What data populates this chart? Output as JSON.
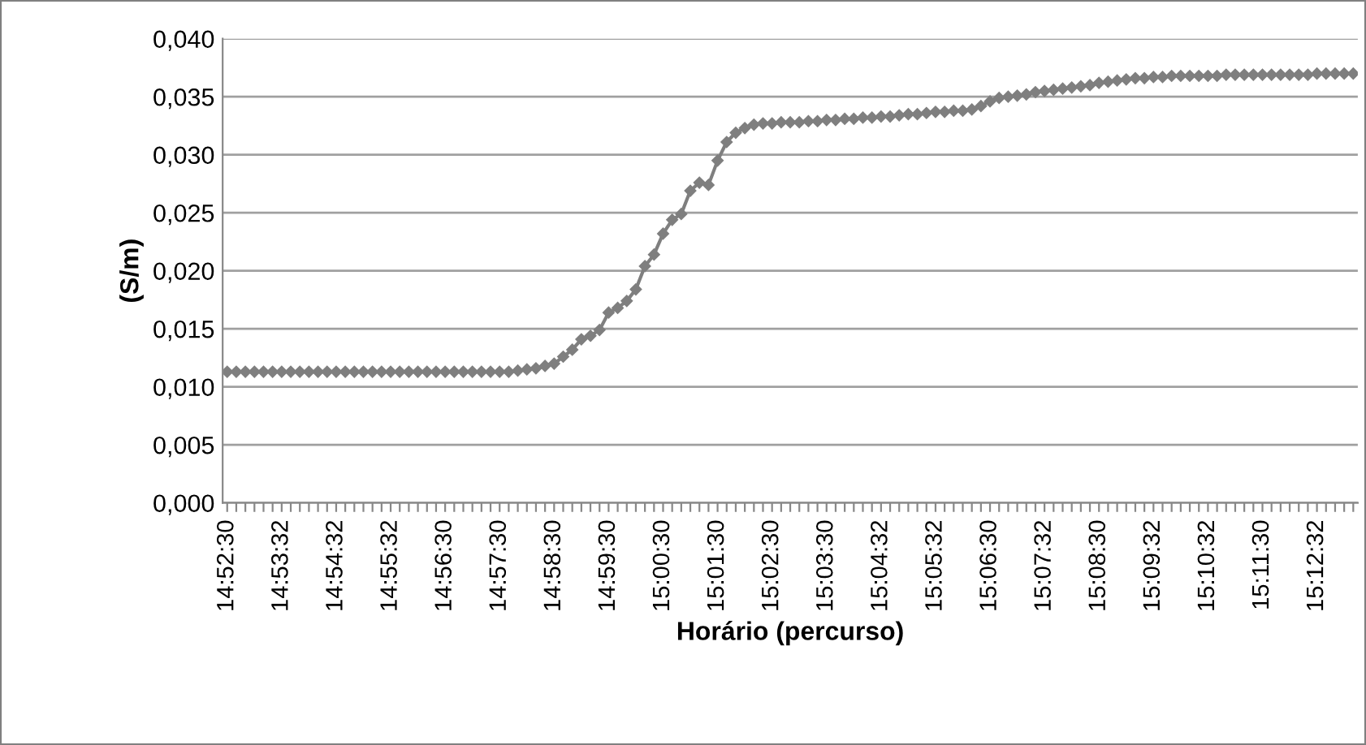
{
  "chart_data": {
    "type": "line",
    "xlabel": "Horário (percurso)",
    "ylabel": "(S/m)",
    "categories": [
      "14:52:30",
      null,
      null,
      null,
      null,
      null,
      "14:53:32",
      null,
      null,
      null,
      null,
      null,
      "14:54:32",
      null,
      null,
      null,
      null,
      null,
      "14:55:32",
      null,
      null,
      null,
      null,
      null,
      "14:56:30",
      null,
      null,
      null,
      null,
      null,
      "14:57:30",
      null,
      null,
      null,
      null,
      null,
      "14:58:30",
      null,
      null,
      null,
      null,
      null,
      "14:59:30",
      null,
      null,
      null,
      null,
      null,
      "15:00:30",
      null,
      null,
      null,
      null,
      null,
      "15:01:30",
      null,
      null,
      null,
      null,
      null,
      "15:02:30",
      null,
      null,
      null,
      null,
      null,
      "15:03:30",
      null,
      null,
      null,
      null,
      null,
      "15:04:32",
      null,
      null,
      null,
      null,
      null,
      "15:05:32",
      null,
      null,
      null,
      null,
      null,
      "15:06:30",
      null,
      null,
      null,
      null,
      null,
      "15:07:32",
      null,
      null,
      null,
      null,
      null,
      "15:08:30",
      null,
      null,
      null,
      null,
      null,
      "15:09:32",
      null,
      null,
      null,
      null,
      null,
      "15:10:32",
      null,
      null,
      null,
      null,
      null,
      "15:11:30",
      null,
      null,
      null,
      null,
      null,
      "15:12:32",
      null,
      null,
      null,
      null
    ],
    "series": [
      {
        "color": "#7f7f7f",
        "values": [
          0.0113,
          0.0113,
          0.0113,
          0.0113,
          0.0113,
          0.0113,
          0.0113,
          0.0113,
          0.0113,
          0.0113,
          0.0113,
          0.0113,
          0.0113,
          0.0113,
          0.0113,
          0.0113,
          0.0113,
          0.0113,
          0.0113,
          0.0113,
          0.0113,
          0.0113,
          0.0113,
          0.0113,
          0.0113,
          0.0113,
          0.0113,
          0.0113,
          0.0113,
          0.0113,
          0.0113,
          0.0113,
          0.0114,
          0.0115,
          0.0116,
          0.0118,
          0.012,
          0.0126,
          0.0132,
          0.0141,
          0.0144,
          0.0149,
          0.0164,
          0.0168,
          0.0174,
          0.0184,
          0.0204,
          0.0214,
          0.0232,
          0.0244,
          0.0249,
          0.0269,
          0.0276,
          0.0274,
          0.0295,
          0.0311,
          0.0319,
          0.0323,
          0.0326,
          0.0327,
          0.0327,
          0.0328,
          0.0328,
          0.0328,
          0.0329,
          0.0329,
          0.033,
          0.033,
          0.0331,
          0.0331,
          0.0332,
          0.0332,
          0.0333,
          0.0333,
          0.0334,
          0.0335,
          0.0335,
          0.0336,
          0.0337,
          0.0337,
          0.0338,
          0.0338,
          0.0339,
          0.0342,
          0.0346,
          0.0349,
          0.035,
          0.0351,
          0.0352,
          0.0354,
          0.0355,
          0.0356,
          0.0357,
          0.0358,
          0.0359,
          0.036,
          0.0362,
          0.0363,
          0.0364,
          0.0365,
          0.0366,
          0.0366,
          0.0367,
          0.0367,
          0.0368,
          0.0368,
          0.0368,
          0.0368,
          0.0368,
          0.0368,
          0.0369,
          0.0369,
          0.0369,
          0.0369,
          0.0369,
          0.0369,
          0.0369,
          0.0369,
          0.0369,
          0.0369,
          0.037,
          0.037,
          0.037,
          0.037,
          0.037
        ]
      }
    ],
    "ylim": [
      0,
      0.04
    ],
    "yticks": [
      {
        "value": 0,
        "label": "0,000"
      },
      {
        "value": 0.005,
        "label": "0,005"
      },
      {
        "value": 0.01,
        "label": "0,010"
      },
      {
        "value": 0.015,
        "label": "0,015"
      },
      {
        "value": 0.02,
        "label": "0,020"
      },
      {
        "value": 0.025,
        "label": "0,025"
      },
      {
        "value": 0.03,
        "label": "0,030"
      },
      {
        "value": 0.035,
        "label": "0,035"
      },
      {
        "value": 0.04,
        "label": "0,040"
      }
    ],
    "grid": "y",
    "marker": "diamond",
    "line_style": "solid"
  }
}
